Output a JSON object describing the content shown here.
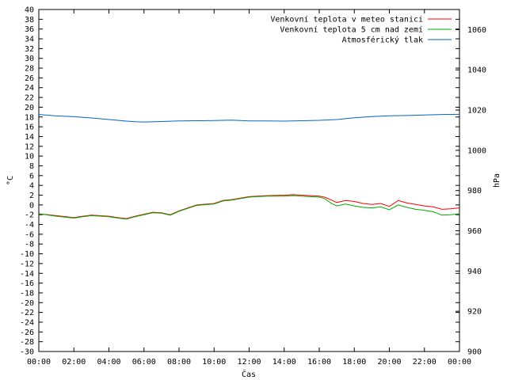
{
  "chart_data": {
    "type": "line",
    "xlabel": "Čas",
    "ylabel": "°C",
    "y2label": "hPa",
    "x_ticks": [
      "00:00",
      "02:00",
      "04:00",
      "06:00",
      "08:00",
      "10:00",
      "12:00",
      "14:00",
      "16:00",
      "18:00",
      "20:00",
      "22:00",
      "00:00"
    ],
    "xlim": [
      0,
      24
    ],
    "ylim": [
      -30,
      40
    ],
    "y2lim": [
      900,
      1070
    ],
    "y_ticks": [
      40,
      38,
      36,
      34,
      32,
      30,
      28,
      26,
      24,
      22,
      20,
      18,
      16,
      14,
      12,
      10,
      8,
      6,
      4,
      2,
      0,
      -2,
      -4,
      -6,
      -8,
      -10,
      -12,
      -14,
      -16,
      -18,
      -20,
      -22,
      -24,
      -26,
      -28,
      -30
    ],
    "y2_ticks": [
      1060,
      1040,
      1020,
      1000,
      980,
      960,
      940,
      920,
      900
    ],
    "legend_position": "top-right",
    "grid": false,
    "series": [
      {
        "name": "Venkovní teplota v meteo stanici",
        "color": "#ff0000",
        "axis": "y",
        "x": [
          0,
          1,
          2,
          2.5,
          3,
          4,
          4.5,
          5,
          5.5,
          6,
          6.5,
          7,
          7.5,
          8,
          8.5,
          9,
          10,
          10.5,
          11,
          12,
          13,
          14,
          14.5,
          15,
          16,
          16.3,
          16.7,
          17,
          17.5,
          18,
          18.5,
          19,
          19.5,
          20,
          20.5,
          21,
          21.5,
          22,
          22.5,
          23,
          23.5,
          24
        ],
        "y": [
          -1.8,
          -2.2,
          -2.6,
          -2.3,
          -2.1,
          -2.3,
          -2.6,
          -2.8,
          -2.3,
          -1.9,
          -1.5,
          -1.6,
          -2.0,
          -1.2,
          -0.6,
          0.0,
          0.3,
          0.9,
          1.1,
          1.7,
          1.9,
          2.0,
          2.1,
          2.0,
          1.8,
          1.6,
          1.0,
          0.5,
          0.9,
          0.7,
          0.3,
          0.1,
          0.3,
          -0.3,
          0.9,
          0.4,
          0.1,
          -0.2,
          -0.4,
          -0.9,
          -0.8,
          -0.6
        ]
      },
      {
        "name": "Venkovní teplota 5 cm nad zemí",
        "color": "#00aa00",
        "axis": "y",
        "x": [
          0,
          1,
          2,
          2.5,
          3,
          4,
          4.5,
          5,
          5.5,
          6,
          6.5,
          7,
          7.5,
          8,
          8.5,
          9,
          10,
          10.5,
          11,
          12,
          13,
          14,
          14.5,
          15,
          16,
          16.3,
          16.7,
          17,
          17.5,
          18,
          18.5,
          19,
          19.5,
          20,
          20.5,
          21,
          21.5,
          22,
          22.5,
          23,
          23.5,
          24
        ],
        "y": [
          -1.8,
          -2.3,
          -2.7,
          -2.4,
          -2.2,
          -2.4,
          -2.7,
          -2.9,
          -2.4,
          -2.0,
          -1.6,
          -1.7,
          -2.1,
          -1.3,
          -0.7,
          -0.1,
          0.2,
          0.8,
          1.0,
          1.6,
          1.8,
          1.8,
          1.9,
          1.8,
          1.6,
          1.3,
          0.3,
          -0.2,
          0.2,
          -0.2,
          -0.5,
          -0.6,
          -0.4,
          -1.0,
          0.0,
          -0.5,
          -0.9,
          -1.1,
          -1.4,
          -2.1,
          -2.0,
          -1.8
        ]
      },
      {
        "name": "Atmosférický tlak",
        "color": "#0066cc",
        "axis": "y2",
        "x": [
          0,
          1,
          2,
          3,
          4,
          5,
          5.5,
          6,
          7,
          8,
          9,
          10,
          11,
          12,
          13,
          14,
          15,
          16,
          17,
          18,
          19,
          20,
          21,
          22,
          23,
          24
        ],
        "y": [
          1017.8,
          1017.1,
          1016.7,
          1016.1,
          1015.3,
          1014.5,
          1014.2,
          1014.1,
          1014.3,
          1014.6,
          1014.7,
          1014.8,
          1015.0,
          1014.6,
          1014.6,
          1014.5,
          1014.7,
          1014.9,
          1015.3,
          1016.2,
          1016.8,
          1017.2,
          1017.3,
          1017.6,
          1017.8,
          1017.9
        ]
      }
    ]
  }
}
